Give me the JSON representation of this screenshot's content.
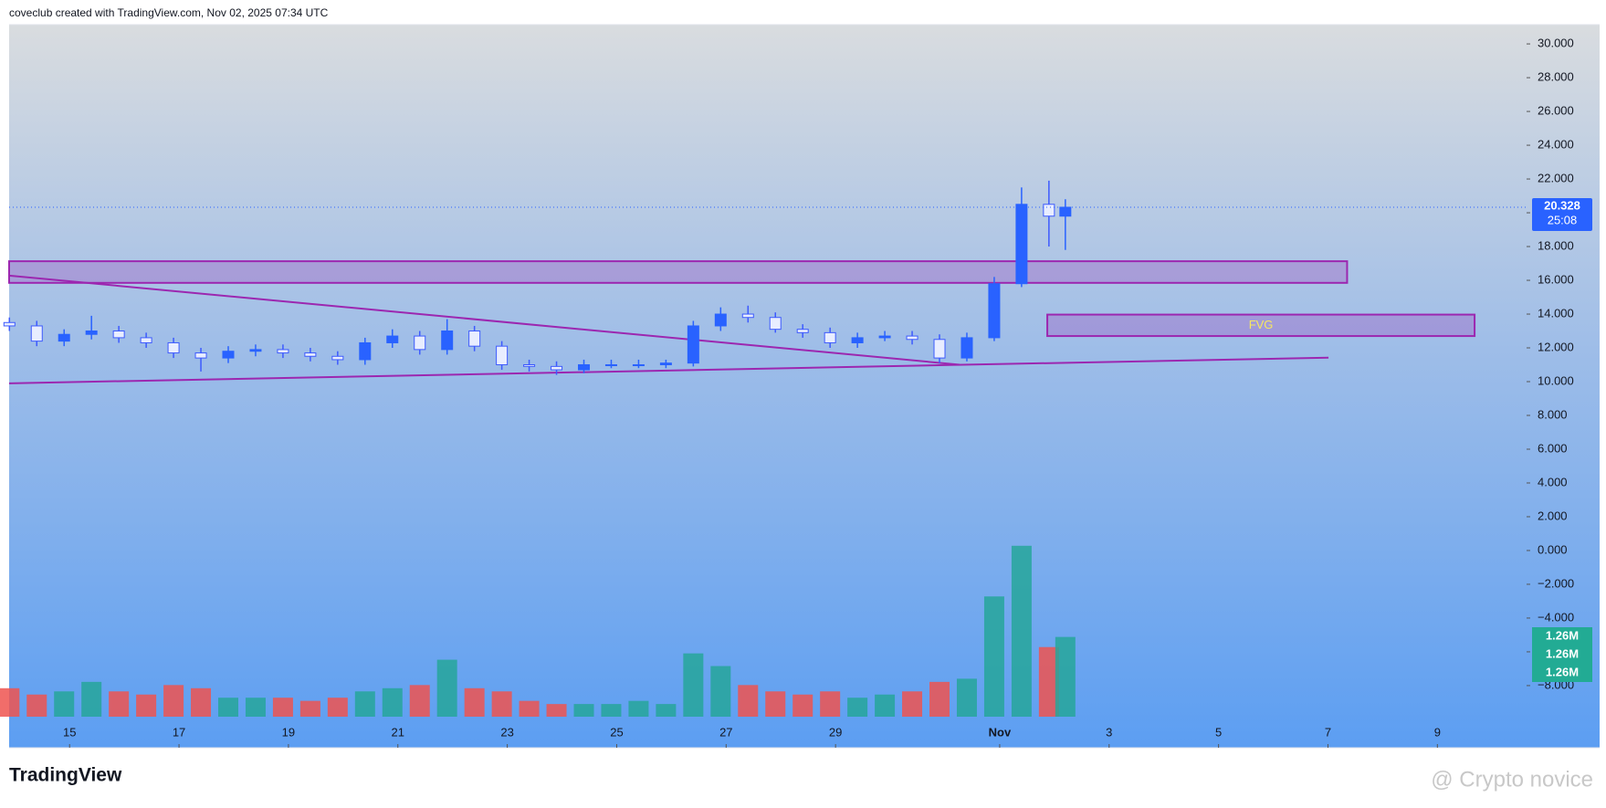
{
  "header": "coveclub created with TradingView.com, Nov 02, 2025 07:34 UTC",
  "logo": "TradingView",
  "watermark": "@ Crypto novice",
  "chart_data": {
    "type": "candlestick",
    "x": [
      13.9,
      14.4,
      14.9,
      15.4,
      15.9,
      16.4,
      16.9,
      17.4,
      17.9,
      18.4,
      18.9,
      19.4,
      19.9,
      20.4,
      20.9,
      21.4,
      21.9,
      22.4,
      22.9,
      23.4,
      23.9,
      24.4,
      24.9,
      25.4,
      25.9,
      26.4,
      26.9,
      27.4,
      27.9,
      28.4,
      28.9,
      29.4,
      29.9,
      30.4,
      30.9,
      31.4,
      31.9,
      32.4,
      32.9,
      33.2
    ],
    "open": [
      13.5,
      13.3,
      12.4,
      12.8,
      13.0,
      12.6,
      12.3,
      11.7,
      11.4,
      11.8,
      11.9,
      11.7,
      11.5,
      11.3,
      12.3,
      12.7,
      11.9,
      13.0,
      12.1,
      11.0,
      10.9,
      10.7,
      11.0,
      11.0,
      11.0,
      11.1,
      13.3,
      14.0,
      13.8,
      13.1,
      12.9,
      12.3,
      12.6,
      12.7,
      12.5,
      11.4,
      12.6,
      15.8,
      20.5,
      19.8
    ],
    "high": [
      13.8,
      13.6,
      13.1,
      13.9,
      13.3,
      12.9,
      12.6,
      12.0,
      12.1,
      12.2,
      12.2,
      12.0,
      11.8,
      12.6,
      13.1,
      13.0,
      13.7,
      13.3,
      12.4,
      11.3,
      11.2,
      11.3,
      11.3,
      11.3,
      11.3,
      13.6,
      14.4,
      14.5,
      14.1,
      13.4,
      13.2,
      12.9,
      13.0,
      13.0,
      12.8,
      12.9,
      16.2,
      21.5,
      21.9,
      20.8
    ],
    "low": [
      13.0,
      12.1,
      12.1,
      12.5,
      12.3,
      12.0,
      11.4,
      10.6,
      11.1,
      11.5,
      11.4,
      11.2,
      11.0,
      11.0,
      12.0,
      11.6,
      11.6,
      11.8,
      10.7,
      10.6,
      10.4,
      10.5,
      10.8,
      10.8,
      10.8,
      10.9,
      13.0,
      13.5,
      12.9,
      12.6,
      12.0,
      12.0,
      12.4,
      12.2,
      11.1,
      11.2,
      12.4,
      15.6,
      18.0,
      17.8
    ],
    "close": [
      13.3,
      12.4,
      12.8,
      13.0,
      12.6,
      12.3,
      11.7,
      11.4,
      11.8,
      11.9,
      11.7,
      11.5,
      11.3,
      12.3,
      12.7,
      11.9,
      13.0,
      12.1,
      11.0,
      10.9,
      10.7,
      11.0,
      11.0,
      11.0,
      11.1,
      13.3,
      14.0,
      13.8,
      13.1,
      12.9,
      12.3,
      12.6,
      12.7,
      12.5,
      11.4,
      12.6,
      15.8,
      20.5,
      19.8,
      20.328
    ],
    "up_color": "#2962ff",
    "down_color": "#3d5afe",
    "volume": {
      "values": [
        0.45,
        0.35,
        0.4,
        0.55,
        0.4,
        0.35,
        0.5,
        0.45,
        0.3,
        0.3,
        0.3,
        0.25,
        0.3,
        0.4,
        0.45,
        0.5,
        0.9,
        0.45,
        0.4,
        0.25,
        0.2,
        0.2,
        0.2,
        0.25,
        0.2,
        1.0,
        0.8,
        0.5,
        0.4,
        0.35,
        0.4,
        0.3,
        0.35,
        0.4,
        0.55,
        0.6,
        1.9,
        2.7,
        1.1,
        1.26
      ],
      "vlim": [
        0,
        3
      ],
      "up_color": "#26a69a",
      "down_color": "#ef5350"
    },
    "xlim": [
      13.895,
      41.63
    ],
    "xticks": [
      15,
      17,
      19,
      21,
      23,
      25,
      27,
      29,
      {
        "value": 32,
        "label": "Nov"
      },
      {
        "value": 34,
        "label": "3"
      },
      {
        "value": 36,
        "label": "5"
      },
      {
        "value": 38,
        "label": "7"
      },
      {
        "value": 40,
        "label": "9"
      }
    ],
    "ylim": [
      -11.68,
      31.14
    ],
    "yticks": [
      {
        "value": 30,
        "label": "30.000"
      },
      {
        "value": 28,
        "label": "28.000"
      },
      {
        "value": 26,
        "label": "26.000"
      },
      {
        "value": 24,
        "label": "24.000"
      },
      {
        "value": 22,
        "label": "22.000"
      },
      {
        "value": 20,
        "label": "20.000"
      },
      {
        "value": 18,
        "label": "18.000"
      },
      {
        "value": 16,
        "label": "16.000"
      },
      {
        "value": 14,
        "label": "14.000"
      },
      {
        "value": 12,
        "label": "12.000"
      },
      {
        "value": 10,
        "label": "10.000"
      },
      {
        "value": 8,
        "label": "8.000"
      },
      {
        "value": 6,
        "label": "6.000"
      },
      {
        "value": 4,
        "label": "4.000"
      },
      {
        "value": 2,
        "label": "2.000"
      },
      {
        "value": 0,
        "label": "0.000"
      },
      {
        "value": -2,
        "label": "−2.000"
      },
      {
        "value": -4,
        "label": "−4.000"
      },
      {
        "value": -6,
        "label": "−6.000"
      },
      {
        "value": -8,
        "label": "−8.000"
      }
    ],
    "grid": false,
    "last_price": 20.328,
    "countdown": "25:08",
    "volume_labels": [
      {
        "value": 1.26,
        "label": "1.26M"
      },
      {
        "value": 1.26,
        "label": "1.26M"
      },
      {
        "value": 1.26,
        "label": "1.26M"
      }
    ],
    "zones": [
      {
        "x0": 13.895,
        "x1": 38.35,
        "top": 17.13,
        "bottom": 15.85
      },
      {
        "x0": 32.87,
        "x1": 40.68,
        "top": 13.97,
        "bottom": 12.7,
        "label": "FVG"
      }
    ],
    "trendlines": [
      {
        "x0": 13.895,
        "y0": 16.28,
        "x1": 31.27,
        "y1": 11.0
      },
      {
        "x0": 13.895,
        "y0": 9.9,
        "x1": 38.01,
        "y1": 11.42
      }
    ],
    "drawing_color": "#9c27b0"
  }
}
